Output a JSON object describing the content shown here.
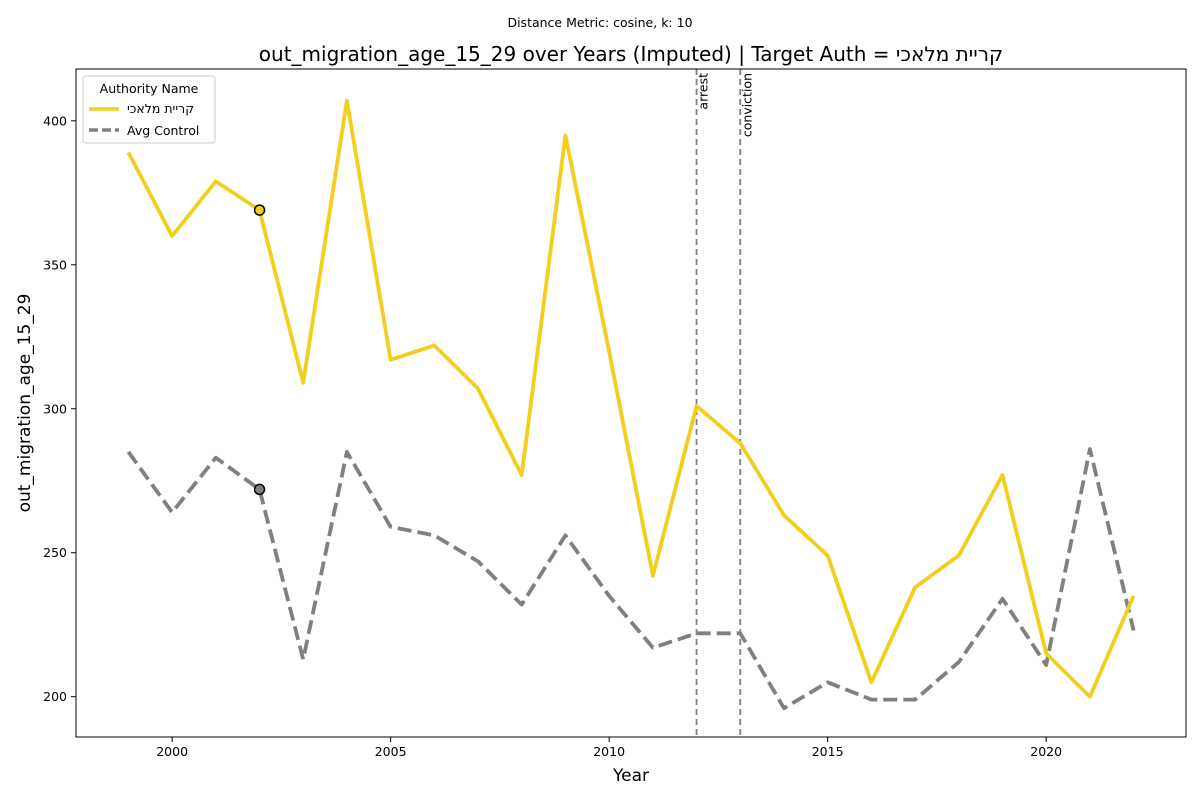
{
  "chart_data": {
    "type": "line",
    "suptitle": "Distance Metric: cosine, k: 10",
    "title": "out_migration_age_15_29 over Years (Imputed) | Target Auth = קריית מלאכי",
    "xlabel": "Year",
    "ylabel": "out_migration_age_15_29",
    "xlim": [
      1997.8,
      2023.2
    ],
    "ylim": [
      186,
      418
    ],
    "xticks": [
      2000,
      2005,
      2010,
      2015,
      2020
    ],
    "yticks": [
      200,
      250,
      300,
      350,
      400
    ],
    "grid": false,
    "legend": {
      "title": "Authority Name",
      "placement": "top-left"
    },
    "x": [
      1999,
      2000,
      2001,
      2002,
      2003,
      2004,
      2005,
      2006,
      2007,
      2008,
      2009,
      2010,
      2011,
      2012,
      2013,
      2014,
      2015,
      2016,
      2017,
      2018,
      2019,
      2020,
      2021,
      2022
    ],
    "series": [
      {
        "name": "קריית מלאכי",
        "color": "#f2cf1d",
        "style": "solid",
        "values": [
          389,
          360,
          379,
          369,
          309,
          407,
          317,
          322,
          307,
          277,
          395,
          320,
          242,
          301,
          288,
          263,
          249,
          205,
          238,
          249,
          277,
          215,
          200,
          235
        ]
      },
      {
        "name": "Avg Control",
        "color": "#808080",
        "style": "dashed",
        "values": [
          285,
          264,
          283,
          272,
          213,
          285,
          259,
          256,
          247,
          232,
          256,
          235,
          217,
          222,
          222,
          196,
          205,
          199,
          199,
          212,
          234,
          211,
          286,
          223
        ]
      }
    ],
    "markers": [
      {
        "series": 0,
        "x": 2002,
        "y": 369
      },
      {
        "series": 1,
        "x": 2002,
        "y": 272
      }
    ],
    "vlines": [
      {
        "x": 2012,
        "label": "arrest"
      },
      {
        "x": 2013,
        "label": "conviction"
      }
    ]
  }
}
